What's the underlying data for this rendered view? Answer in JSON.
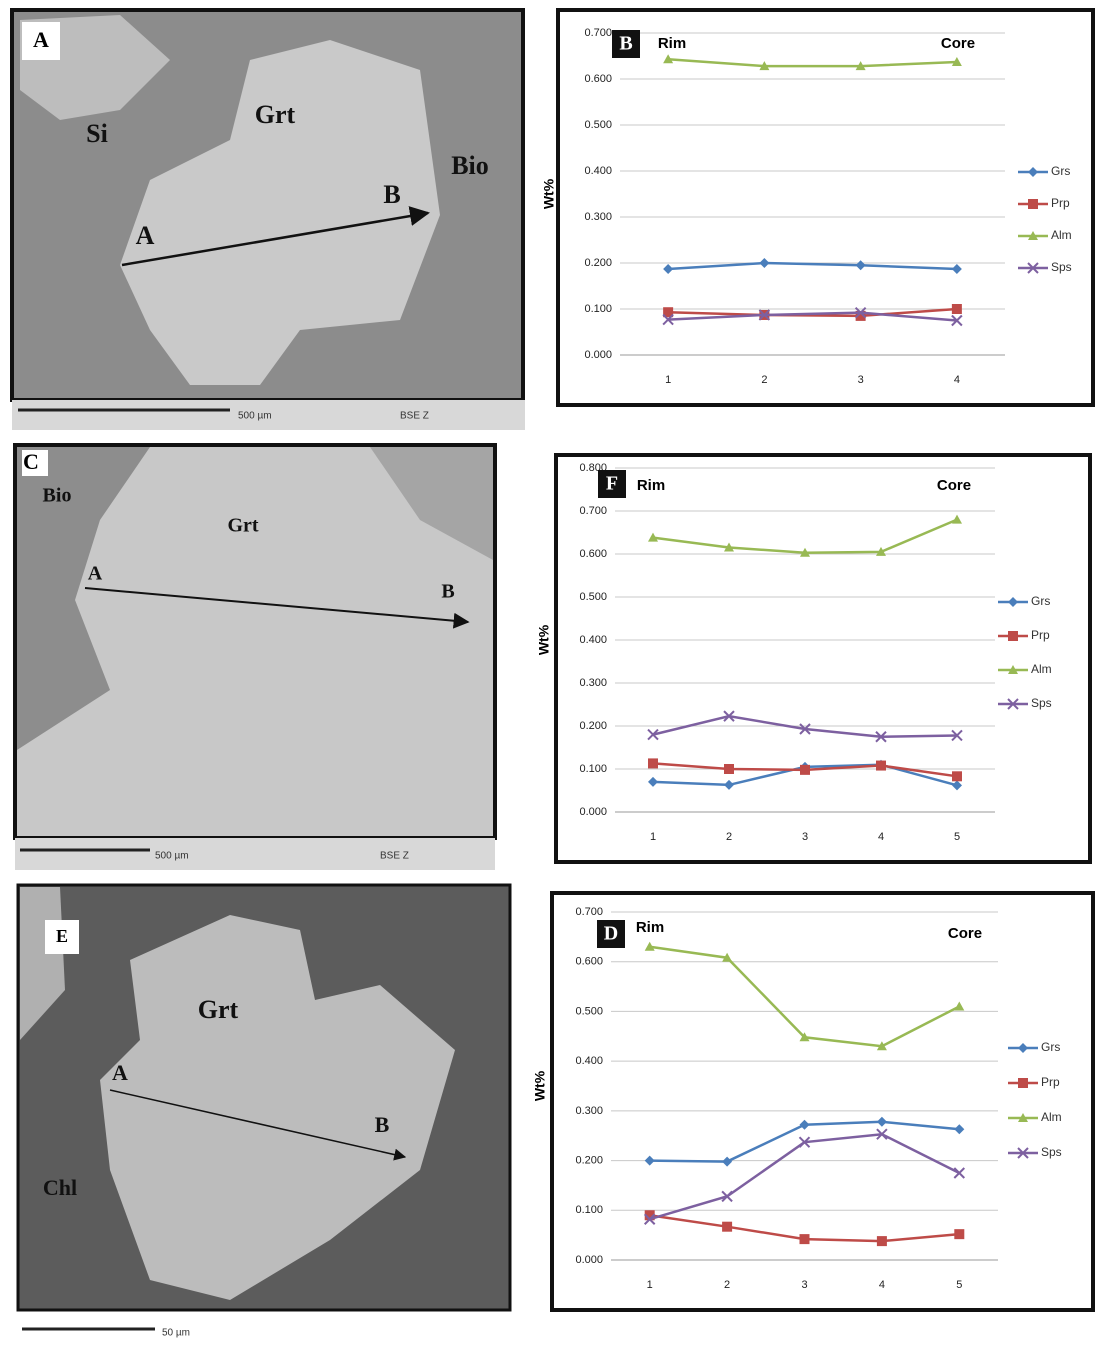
{
  "images": [
    {
      "panel_label": "A",
      "labels": [
        "Si",
        "Grt",
        "Bio",
        "A",
        "B"
      ],
      "scale_text": "500 µm",
      "detector": "BSE Z"
    },
    {
      "panel_label": "C",
      "labels": [
        "Bio",
        "Grt",
        "A",
        "B"
      ],
      "scale_text": "500 µm",
      "detector": "BSE Z"
    },
    {
      "panel_label": "E",
      "labels": [
        "Grt",
        "A",
        "B",
        "Chl"
      ],
      "scale_text": "50 µm"
    }
  ],
  "chart_data": [
    {
      "type": "line",
      "panel_label": "B",
      "annotations": [
        "Rim",
        "Core"
      ],
      "y_label": "Wt%",
      "categories": [
        "1",
        "2",
        "3",
        "4"
      ],
      "ylim": [
        0,
        0.7
      ],
      "yticks": [
        {
          "value": 0,
          "label": "0.000"
        },
        {
          "value": 0.1,
          "label": "0.100"
        },
        {
          "value": 0.2,
          "label": "0.200"
        },
        {
          "value": 0.3,
          "label": "0.300"
        },
        {
          "value": 0.4,
          "label": "0.400"
        },
        {
          "value": 0.5,
          "label": "0.500"
        },
        {
          "value": 0.6,
          "label": "0.600"
        },
        {
          "value": 0.7,
          "label": "0.700"
        }
      ],
      "grid": true,
      "series": [
        {
          "name": "Grs",
          "color": "#4a7ebb",
          "marker": "diamond",
          "values": [
            0.187,
            0.2,
            0.195,
            0.187
          ]
        },
        {
          "name": "Prp",
          "color": "#be4b48",
          "marker": "square",
          "values": [
            0.093,
            0.087,
            0.085,
            0.1
          ]
        },
        {
          "name": "Alm",
          "color": "#98b954",
          "marker": "triangle",
          "values": [
            0.643,
            0.628,
            0.628,
            0.637
          ]
        },
        {
          "name": "Sps",
          "color": "#7d60a0",
          "marker": "x",
          "values": [
            0.077,
            0.087,
            0.092,
            0.075
          ]
        }
      ]
    },
    {
      "type": "line",
      "panel_label": "F",
      "annotations": [
        "Rim",
        "Core"
      ],
      "y_label": "Wt%",
      "categories": [
        "1",
        "2",
        "3",
        "4",
        "5"
      ],
      "ylim": [
        0,
        0.8
      ],
      "yticks": [
        {
          "value": 0,
          "label": "0.000"
        },
        {
          "value": 0.1,
          "label": "0.100"
        },
        {
          "value": 0.2,
          "label": "0.200"
        },
        {
          "value": 0.3,
          "label": "0.300"
        },
        {
          "value": 0.4,
          "label": "0.400"
        },
        {
          "value": 0.5,
          "label": "0.500"
        },
        {
          "value": 0.6,
          "label": "0.600"
        },
        {
          "value": 0.7,
          "label": "0.700"
        },
        {
          "value": 0.8,
          "label": "0.800"
        }
      ],
      "grid": true,
      "series": [
        {
          "name": "Grs",
          "color": "#4a7ebb",
          "marker": "diamond",
          "values": [
            0.07,
            0.063,
            0.105,
            0.11,
            0.062
          ]
        },
        {
          "name": "Prp",
          "color": "#be4b48",
          "marker": "square",
          "values": [
            0.113,
            0.1,
            0.098,
            0.108,
            0.083
          ]
        },
        {
          "name": "Alm",
          "color": "#98b954",
          "marker": "triangle",
          "values": [
            0.638,
            0.615,
            0.603,
            0.605,
            0.68
          ]
        },
        {
          "name": "Sps",
          "color": "#7d60a0",
          "marker": "x",
          "values": [
            0.18,
            0.223,
            0.193,
            0.175,
            0.178
          ]
        }
      ]
    },
    {
      "type": "line",
      "panel_label": "D",
      "annotations": [
        "Rim",
        "Core"
      ],
      "y_label": "Wt%",
      "categories": [
        "1",
        "2",
        "3",
        "4",
        "5"
      ],
      "ylim": [
        0,
        0.7
      ],
      "yticks": [
        {
          "value": 0,
          "label": "0.000"
        },
        {
          "value": 0.1,
          "label": "0.100"
        },
        {
          "value": 0.2,
          "label": "0.200"
        },
        {
          "value": 0.3,
          "label": "0.300"
        },
        {
          "value": 0.4,
          "label": "0.400"
        },
        {
          "value": 0.5,
          "label": "0.500"
        },
        {
          "value": 0.6,
          "label": "0.600"
        },
        {
          "value": 0.7,
          "label": "0.700"
        }
      ],
      "grid": true,
      "series": [
        {
          "name": "Grs",
          "color": "#4a7ebb",
          "marker": "diamond",
          "values": [
            0.2,
            0.198,
            0.272,
            0.278,
            0.263
          ]
        },
        {
          "name": "Prp",
          "color": "#be4b48",
          "marker": "square",
          "values": [
            0.09,
            0.067,
            0.042,
            0.038,
            0.052
          ]
        },
        {
          "name": "Alm",
          "color": "#98b954",
          "marker": "triangle",
          "values": [
            0.63,
            0.608,
            0.448,
            0.43,
            0.51
          ]
        },
        {
          "name": "Sps",
          "color": "#7d60a0",
          "marker": "x",
          "values": [
            0.082,
            0.128,
            0.237,
            0.253,
            0.175
          ]
        }
      ]
    }
  ]
}
